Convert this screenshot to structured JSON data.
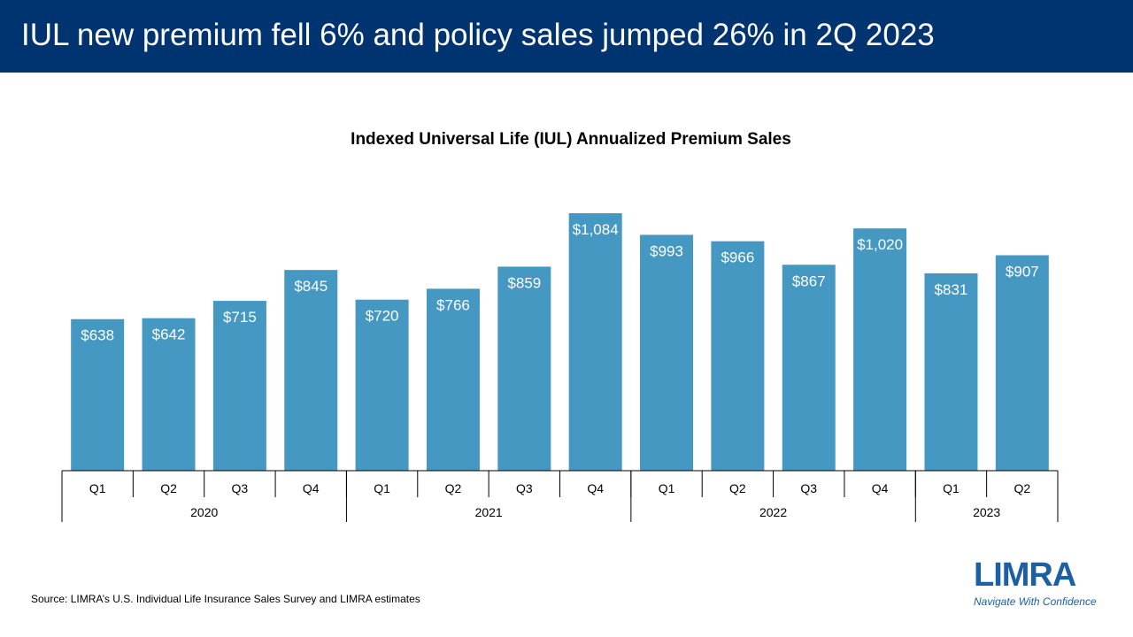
{
  "slide": {
    "headline": "IUL new premium fell 6% and policy sales jumped 26% in 2Q 2023",
    "source": "Source: LIMRA’s U.S. Individual Life Insurance Sales Survey and LIMRA estimates",
    "logo": {
      "name": "LIMRA",
      "tagline": "Navigate With Confidence"
    },
    "colors": {
      "header": "#003471",
      "bar": "#4598c2",
      "logo": "#1d5fa3"
    }
  },
  "chart_data": {
    "type": "bar",
    "title": "Indexed Universal Life (IUL) Annualized Premium Sales",
    "xlabel": "",
    "ylabel": "",
    "grid": false,
    "legend": "none",
    "unit": "$M",
    "ylim": [
      0,
      1200
    ],
    "categories": [
      "Q1",
      "Q2",
      "Q3",
      "Q4",
      "Q1",
      "Q2",
      "Q3",
      "Q4",
      "Q1",
      "Q2",
      "Q3",
      "Q4",
      "Q1",
      "Q2"
    ],
    "groups": [
      {
        "label": "2020",
        "count": 4
      },
      {
        "label": "2021",
        "count": 4
      },
      {
        "label": "2022",
        "count": 4
      },
      {
        "label": "2023",
        "count": 2
      }
    ],
    "values": [
      638,
      642,
      715,
      845,
      720,
      766,
      859,
      1084,
      993,
      966,
      867,
      1020,
      831,
      907
    ],
    "labels": [
      "$638",
      "$642",
      "$715",
      "$845",
      "$720",
      "$766",
      "$859",
      "$1,084",
      "$993",
      "$966",
      "$867",
      "$1,020",
      "$831",
      "$907"
    ]
  }
}
